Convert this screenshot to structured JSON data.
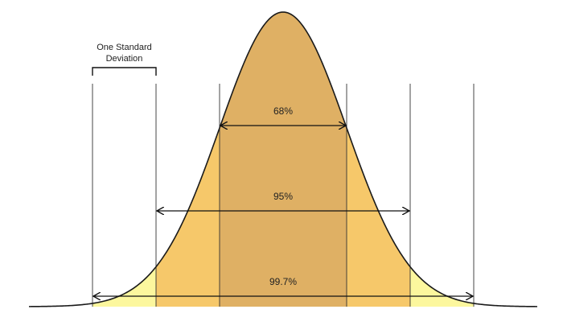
{
  "labels": {
    "one_sd_line1": "One Standard",
    "one_sd_line2": "Deviation",
    "pct_68": "68%",
    "pct_95": "95%",
    "pct_997": "99.7%"
  },
  "colors": {
    "band_1sd": "#dfb064",
    "band_2sd": "#f6c86a",
    "band_3sd": "#fcf79e",
    "curve": "#1a1a1a",
    "guide_line": "#333333",
    "arrow": "#111111"
  },
  "distribution": {
    "mean": 0,
    "sd": 1,
    "sd_boundaries": [
      -3,
      -2,
      -1,
      1,
      2,
      3
    ]
  }
}
